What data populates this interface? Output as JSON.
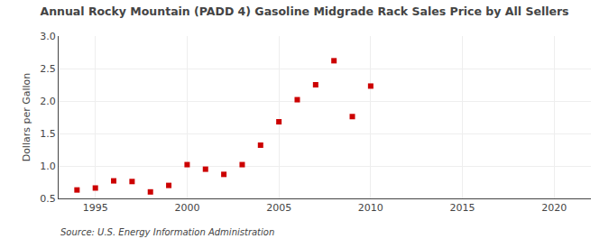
{
  "chart_data": {
    "type": "scatter",
    "title": "Annual Rocky Mountain (PADD 4) Gasoline Midgrade Rack Sales Price by All Sellers",
    "ylabel": "Dollars per Gallon",
    "annotations": [
      "Source: U.S. Energy Information Administration"
    ],
    "x": [
      1994,
      1995,
      1996,
      1997,
      1998,
      1999,
      2000,
      2001,
      2002,
      2003,
      2004,
      2005,
      2006,
      2007,
      2008,
      2009,
      2010
    ],
    "values": [
      0.63,
      0.66,
      0.77,
      0.76,
      0.6,
      0.7,
      1.02,
      0.95,
      0.87,
      1.02,
      1.32,
      1.68,
      2.02,
      2.25,
      2.62,
      1.76,
      2.23
    ],
    "color": "#cc0000",
    "marker": "square",
    "xlim": [
      1993,
      2022
    ],
    "xticks": [
      1995,
      2000,
      2005,
      2010,
      2015,
      2020
    ],
    "ylim": [
      0.5,
      3.0
    ],
    "yticks": [
      0.5,
      {
        "value": 1.0,
        "label": "1.0"
      },
      1.5,
      {
        "value": 2.0,
        "label": "2.0"
      },
      2.5,
      {
        "value": 3.0,
        "label": "3.0"
      }
    ],
    "grid": true
  }
}
